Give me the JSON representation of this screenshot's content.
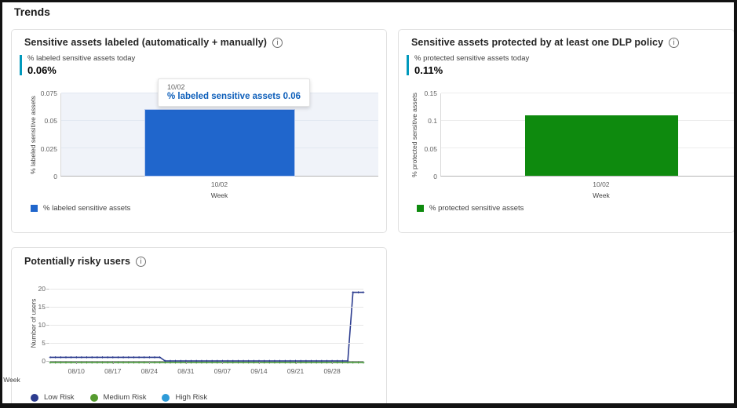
{
  "page": {
    "heading": "Trends"
  },
  "theme": {
    "kpi_accent": "#0099bc",
    "bar_blue": "#2066cc",
    "bar_green": "#0e8a0e",
    "low_risk": "#2c3c8f",
    "medium_risk": "#569b2f",
    "high_risk": "#2e9bd8"
  },
  "cards": [
    {
      "title": "Sensitive assets labeled (automatically + manually)",
      "kpi": {
        "label": "% labeled sensitive assets today",
        "value": "0.06%"
      },
      "tooltip": {
        "date": "10/02",
        "label": "% labeled sensitive assets 0.06"
      },
      "legend": [
        {
          "label": "% labeled sensitive assets"
        }
      ]
    },
    {
      "title": "Sensitive assets protected by at least one DLP policy",
      "kpi": {
        "label": "% protected sensitive assets today",
        "value": "0.11%"
      },
      "legend": [
        {
          "label": "% protected sensitive assets"
        }
      ]
    },
    {
      "title": "Potentially risky users",
      "legend": [
        {
          "label": "Low Risk"
        },
        {
          "label": "Medium Risk"
        },
        {
          "label": "High Risk"
        }
      ]
    }
  ],
  "chart_data": [
    {
      "type": "bar",
      "title": "Sensitive assets labeled (automatically + manually)",
      "categories": [
        "10/02"
      ],
      "values": [
        0.06
      ],
      "xlabel": "Week",
      "ylabel": "% labeled sensitive assets",
      "ylim": [
        0,
        0.075
      ],
      "yticks": [
        0,
        0.025,
        0.05,
        0.075
      ],
      "grid": true,
      "legend_position": "bottom",
      "legend": [
        "% labeled sensitive assets"
      ],
      "bar_color": "#2066cc",
      "plot_bg": "#f0f3f9",
      "grid_color": "#e2e8f1",
      "bar_center_frac": 0.5,
      "bar_width_frac": 0.47
    },
    {
      "type": "bar",
      "title": "Sensitive assets protected by at least one DLP policy",
      "categories": [
        "10/02"
      ],
      "values": [
        0.11
      ],
      "xlabel": "Week",
      "ylabel": "% protected sensitive assets",
      "ylim": [
        0,
        0.15
      ],
      "yticks": [
        0,
        0.05,
        0.1,
        0.15
      ],
      "grid": true,
      "legend_position": "bottom",
      "legend": [
        "% protected sensitive assets"
      ],
      "bar_color": "#0e8a0e",
      "plot_bg": "#ffffff",
      "grid_color": "#ececec",
      "bar_center_frac": 0.545,
      "bar_width_frac": 0.52
    },
    {
      "type": "line",
      "title": "Potentially risky users",
      "xlabel": "Week",
      "ylabel": "Number of users",
      "ylim": [
        0,
        20
      ],
      "yticks": [
        0,
        5,
        10,
        15,
        20
      ],
      "xticks": [
        "08/10",
        "08/17",
        "08/24",
        "08/31",
        "09/07",
        "09/14",
        "09/21",
        "09/28"
      ],
      "xtick_indices": [
        5,
        12,
        19,
        26,
        33,
        40,
        47,
        54
      ],
      "grid": true,
      "grid_color": "#e6e6e6",
      "legend_position": "bottom",
      "series": [
        {
          "name": "Low Risk",
          "color": "#2c3c8f",
          "values": [
            1,
            1,
            1,
            1,
            1,
            1,
            1,
            1,
            1,
            1,
            1,
            1,
            1,
            1,
            1,
            1,
            1,
            1,
            1,
            1,
            1,
            1,
            0,
            0,
            0,
            0,
            0,
            0,
            0,
            0,
            0,
            0,
            0,
            0,
            0,
            0,
            0,
            0,
            0,
            0,
            0,
            0,
            0,
            0,
            0,
            0,
            0,
            0,
            0,
            0,
            0,
            0,
            0,
            0,
            0,
            0,
            0,
            0,
            19,
            19,
            19
          ]
        },
        {
          "name": "Medium Risk",
          "color": "#569b2f",
          "values": [
            0,
            0,
            0,
            0,
            0,
            0,
            0,
            0,
            0,
            0,
            0,
            0,
            0,
            0,
            0,
            0,
            0,
            0,
            0,
            0,
            0,
            0,
            0,
            0,
            0,
            0,
            0,
            0,
            0,
            0,
            0,
            0,
            0,
            0,
            0,
            0,
            0,
            0,
            0,
            0,
            0,
            0,
            0,
            0,
            0,
            0,
            0,
            0,
            0,
            0,
            0,
            0,
            0,
            0,
            0,
            0,
            0,
            0,
            0,
            0,
            0
          ]
        },
        {
          "name": "High Risk",
          "color": "#2e9bd8",
          "values": [
            0,
            0,
            0,
            0,
            0,
            0,
            0,
            0,
            0,
            0,
            0,
            0,
            0,
            0,
            0,
            0,
            0,
            0,
            0,
            0,
            0,
            0,
            0,
            0,
            0,
            0,
            0,
            0,
            0,
            0,
            0,
            0,
            0,
            0,
            0,
            0,
            0,
            0,
            0,
            0,
            0,
            0,
            0,
            0,
            0,
            0,
            0,
            0,
            0,
            0,
            0,
            0,
            0,
            0,
            0,
            0,
            0,
            0,
            0,
            0,
            0
          ]
        }
      ]
    }
  ]
}
